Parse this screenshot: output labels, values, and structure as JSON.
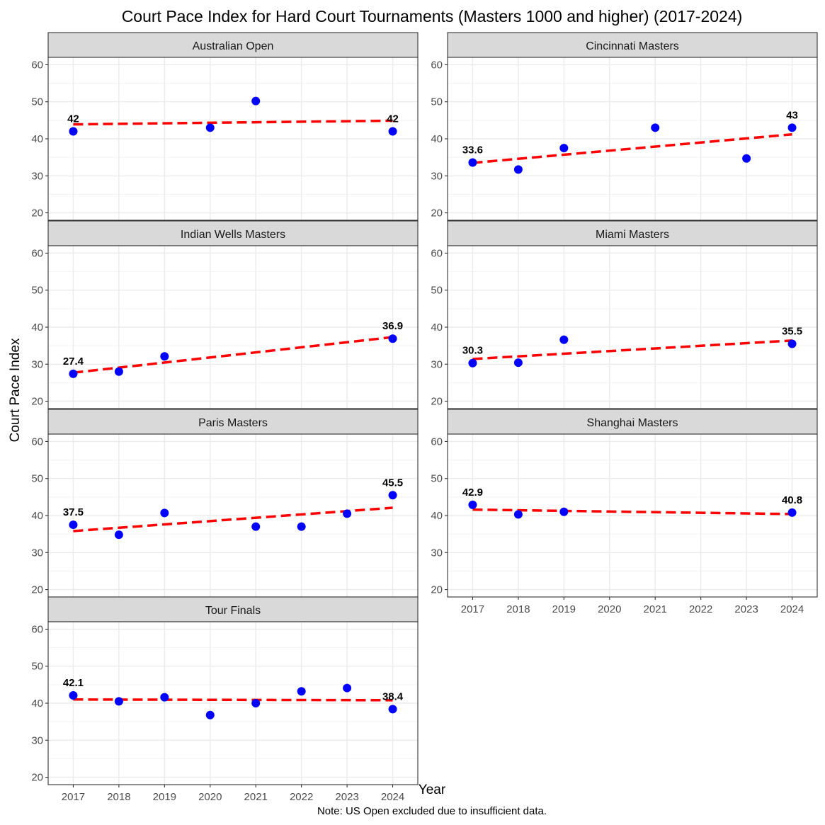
{
  "chart_data": {
    "type": "scatter",
    "title": "Court Pace Index for Hard Court Tournaments (Masters 1000 and higher) (2017-2024)",
    "xlabel": "Year",
    "ylabel": "Court Pace Index",
    "caption": "Note: US Open excluded due to insufficient data.",
    "x_ticks": [
      "2017",
      "2018",
      "2019",
      "2020",
      "2021",
      "2022",
      "2023",
      "2024"
    ],
    "y_ticks": [
      "20",
      "30",
      "40",
      "50",
      "60"
    ],
    "xlim": [
      2016.45,
      2024.55
    ],
    "ylim": [
      18,
      62
    ],
    "grid": true,
    "point_color": "#0000ff",
    "trend_color": "#ff0000",
    "trend_style": "dashed linear fit",
    "panels": [
      {
        "name": "Australian Open",
        "points": [
          {
            "x": 2017,
            "y": 42
          },
          {
            "x": 2020,
            "y": 43
          },
          {
            "x": 2021,
            "y": 50.2
          },
          {
            "x": 2024,
            "y": 42
          }
        ],
        "labels": [
          {
            "x": 2017,
            "y": 42,
            "text": "42"
          },
          {
            "x": 2024,
            "y": 42,
            "text": "42"
          }
        ],
        "trend": [
          [
            2017,
            43.9
          ],
          [
            2024,
            44.9
          ]
        ]
      },
      {
        "name": "Cincinnati Masters",
        "points": [
          {
            "x": 2017,
            "y": 33.6
          },
          {
            "x": 2018,
            "y": 31.7
          },
          {
            "x": 2019,
            "y": 37.5
          },
          {
            "x": 2021,
            "y": 43
          },
          {
            "x": 2023,
            "y": 34.7
          },
          {
            "x": 2024,
            "y": 43
          }
        ],
        "labels": [
          {
            "x": 2017,
            "y": 33.6,
            "text": "33.6"
          },
          {
            "x": 2024,
            "y": 43,
            "text": "43"
          }
        ],
        "trend": [
          [
            2017,
            33.5
          ],
          [
            2024,
            41.2
          ]
        ]
      },
      {
        "name": "Indian Wells Masters",
        "points": [
          {
            "x": 2017,
            "y": 27.4
          },
          {
            "x": 2018,
            "y": 28
          },
          {
            "x": 2019,
            "y": 32.1
          },
          {
            "x": 2024,
            "y": 36.9
          }
        ],
        "labels": [
          {
            "x": 2017,
            "y": 27.4,
            "text": "27.4"
          },
          {
            "x": 2024,
            "y": 36.9,
            "text": "36.9"
          }
        ],
        "trend": [
          [
            2017,
            27.7
          ],
          [
            2024,
            37.3
          ]
        ]
      },
      {
        "name": "Miami Masters",
        "points": [
          {
            "x": 2017,
            "y": 30.3
          },
          {
            "x": 2018,
            "y": 30.4
          },
          {
            "x": 2019,
            "y": 36.6
          },
          {
            "x": 2024,
            "y": 35.5
          }
        ],
        "labels": [
          {
            "x": 2017,
            "y": 30.3,
            "text": "30.3"
          },
          {
            "x": 2024,
            "y": 35.5,
            "text": "35.5"
          }
        ],
        "trend": [
          [
            2017,
            31.4
          ],
          [
            2024,
            36.4
          ]
        ]
      },
      {
        "name": "Paris Masters",
        "points": [
          {
            "x": 2017,
            "y": 37.5
          },
          {
            "x": 2018,
            "y": 34.8
          },
          {
            "x": 2019,
            "y": 40.7
          },
          {
            "x": 2021,
            "y": 37
          },
          {
            "x": 2022,
            "y": 37
          },
          {
            "x": 2023,
            "y": 40.5
          },
          {
            "x": 2024,
            "y": 45.5
          }
        ],
        "labels": [
          {
            "x": 2017,
            "y": 37.5,
            "text": "37.5"
          },
          {
            "x": 2024,
            "y": 45.5,
            "text": "45.5"
          }
        ],
        "trend": [
          [
            2017,
            35.8
          ],
          [
            2024,
            42.1
          ]
        ]
      },
      {
        "name": "Shanghai Masters",
        "points": [
          {
            "x": 2017,
            "y": 42.9
          },
          {
            "x": 2018,
            "y": 40.3
          },
          {
            "x": 2019,
            "y": 41
          },
          {
            "x": 2024,
            "y": 40.8
          }
        ],
        "labels": [
          {
            "x": 2017,
            "y": 42.9,
            "text": "42.9"
          },
          {
            "x": 2024,
            "y": 40.8,
            "text": "40.8"
          }
        ],
        "trend": [
          [
            2017,
            41.6
          ],
          [
            2024,
            40.4
          ]
        ]
      },
      {
        "name": "Tour Finals",
        "points": [
          {
            "x": 2017,
            "y": 42.1
          },
          {
            "x": 2018,
            "y": 40.5
          },
          {
            "x": 2019,
            "y": 41.6
          },
          {
            "x": 2020,
            "y": 36.8
          },
          {
            "x": 2021,
            "y": 40
          },
          {
            "x": 2022,
            "y": 43.2
          },
          {
            "x": 2023,
            "y": 44.1
          },
          {
            "x": 2024,
            "y": 38.4
          }
        ],
        "labels": [
          {
            "x": 2017,
            "y": 42.1,
            "text": "42.1"
          },
          {
            "x": 2024,
            "y": 38.4,
            "text": "38.4"
          }
        ],
        "trend": [
          [
            2017,
            41
          ],
          [
            2024,
            40.8
          ]
        ]
      }
    ]
  }
}
